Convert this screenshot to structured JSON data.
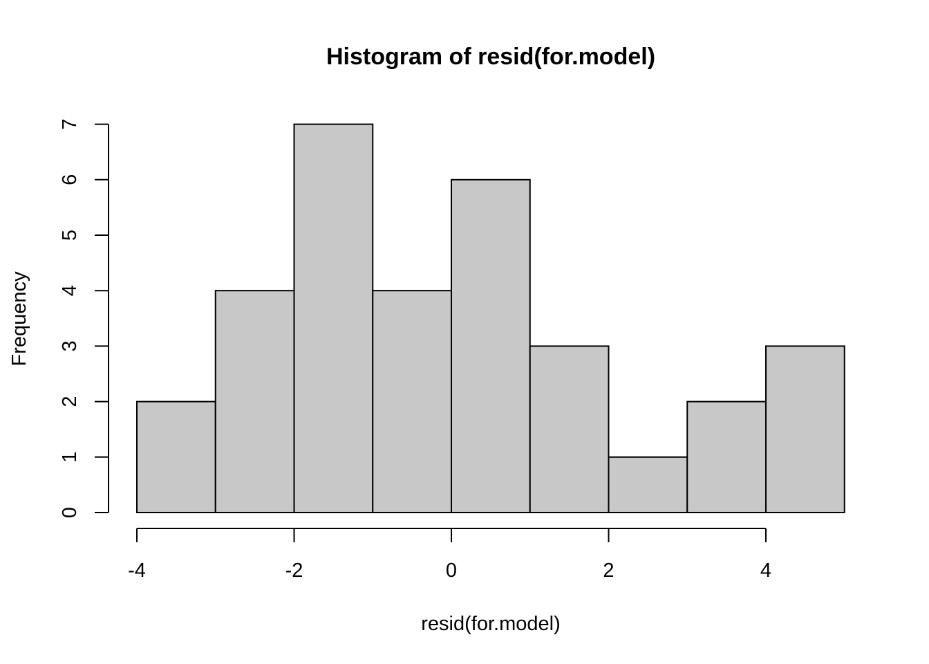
{
  "chart_data": {
    "type": "bar",
    "subtype": "histogram",
    "title": "Histogram of resid(for.model)",
    "xlabel": "resid(for.model)",
    "ylabel": "Frequency",
    "bins": [
      {
        "from": -4,
        "to": -3,
        "count": 2
      },
      {
        "from": -3,
        "to": -2,
        "count": 4
      },
      {
        "from": -2,
        "to": -1,
        "count": 7
      },
      {
        "from": -1,
        "to": 0,
        "count": 4
      },
      {
        "from": 0,
        "to": 1,
        "count": 6
      },
      {
        "from": 1,
        "to": 2,
        "count": 3
      },
      {
        "from": 2,
        "to": 3,
        "count": 1
      },
      {
        "from": 3,
        "to": 4,
        "count": 2
      },
      {
        "from": 4,
        "to": 5,
        "count": 3
      }
    ],
    "x_ticks": [
      -4,
      -2,
      0,
      2,
      4
    ],
    "y_ticks": [
      0,
      1,
      2,
      3,
      4,
      5,
      6,
      7
    ],
    "xlim": [
      -4,
      5
    ],
    "ylim": [
      0,
      7
    ],
    "grid": false,
    "legend": "none",
    "bar_fill": "#c8c8c8",
    "bar_stroke": "#000000"
  }
}
